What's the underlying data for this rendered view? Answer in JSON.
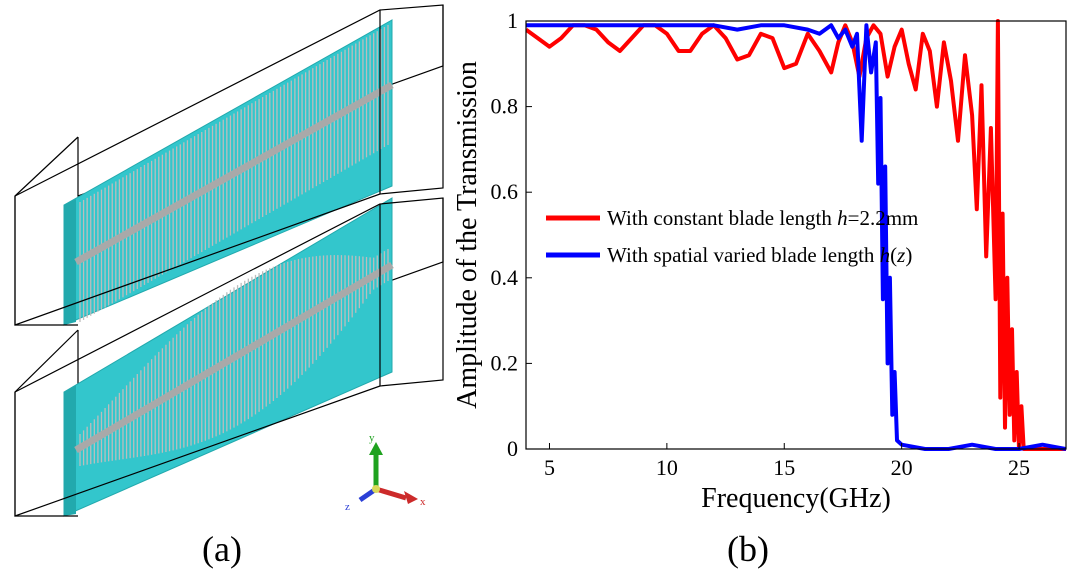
{
  "panel_a": {
    "label": "(a)",
    "axes": {
      "y_label": "y",
      "z_label": "z",
      "x_label": "x"
    },
    "colors": {
      "plate": "#33c6cc",
      "plate_dark": "#22a9ad",
      "fins": "#b8b8b8",
      "rod": "#a9a9a9",
      "box": "#000000"
    }
  },
  "panel_b": {
    "label": "(b)"
  },
  "chart_data": {
    "type": "line",
    "title": "",
    "xlabel": "Frequency(GHz)",
    "ylabel": "Amplitude of the Transmission",
    "xlim": [
      4,
      27
    ],
    "ylim": [
      0,
      1
    ],
    "xticks": [
      5,
      10,
      15,
      20,
      25
    ],
    "yticks": [
      0,
      0.2,
      0.4,
      0.6,
      0.8,
      1
    ],
    "ytick_labels": [
      "0",
      "0.2",
      "0.4",
      "0.6",
      "0.8",
      "1"
    ],
    "grid": false,
    "legend_position": "center-left",
    "series": [
      {
        "name": "With constant blade length h=2.2mm",
        "legend_parts": [
          "With constant blade length ",
          "h",
          "=2.2mm"
        ],
        "color": "#ff0000",
        "x": [
          4,
          4.5,
          5,
          5.5,
          6,
          6.5,
          7,
          7.5,
          8,
          8.5,
          9,
          9.5,
          10,
          10.5,
          11,
          11.5,
          12,
          12.5,
          13,
          13.5,
          14,
          14.5,
          15,
          15.5,
          16,
          16.5,
          17,
          17.3,
          17.6,
          17.9,
          18.2,
          18.5,
          18.8,
          19.1,
          19.4,
          19.7,
          20,
          20.3,
          20.6,
          20.9,
          21.2,
          21.5,
          21.8,
          22.1,
          22.4,
          22.7,
          23,
          23.2,
          23.4,
          23.6,
          23.8,
          24,
          24.1,
          24.2,
          24.3,
          24.4,
          24.5,
          24.6,
          24.7,
          24.8,
          24.9,
          25,
          25.1,
          25.2,
          25.4,
          25.6,
          26,
          26.5,
          27
        ],
        "y": [
          0.98,
          0.96,
          0.94,
          0.96,
          0.99,
          0.99,
          0.98,
          0.95,
          0.93,
          0.96,
          0.99,
          0.99,
          0.97,
          0.93,
          0.93,
          0.97,
          0.99,
          0.96,
          0.91,
          0.92,
          0.97,
          0.96,
          0.89,
          0.9,
          0.97,
          0.93,
          0.88,
          0.95,
          0.99,
          0.95,
          0.87,
          0.96,
          0.99,
          0.97,
          0.87,
          0.94,
          0.98,
          0.9,
          0.84,
          0.97,
          0.93,
          0.8,
          0.95,
          0.86,
          0.72,
          0.92,
          0.78,
          0.56,
          0.85,
          0.45,
          0.75,
          0.35,
          1.0,
          0.12,
          0.55,
          0.05,
          0.4,
          0.08,
          0.28,
          0.02,
          0.18,
          0.0,
          0.1,
          0.0,
          0.0,
          0.0,
          0.0,
          0.0,
          0.0
        ]
      },
      {
        "name": "With spatial varied blade length h(z)",
        "legend_parts": [
          "With spatial varied blade length ",
          "h",
          "(",
          "z",
          ")"
        ],
        "color": "#0000ff",
        "x": [
          4,
          5,
          6,
          7,
          8,
          9,
          10,
          11,
          12,
          13,
          14,
          15,
          16,
          16.5,
          17,
          17.3,
          17.6,
          17.9,
          18.1,
          18.3,
          18.5,
          18.7,
          18.9,
          19.0,
          19.1,
          19.2,
          19.3,
          19.4,
          19.5,
          19.6,
          19.7,
          19.8,
          20,
          21,
          22,
          23,
          24,
          25,
          26,
          27
        ],
        "y": [
          0.99,
          0.99,
          0.99,
          0.99,
          0.99,
          0.99,
          0.99,
          0.99,
          0.99,
          0.98,
          0.99,
          0.99,
          0.98,
          0.97,
          0.99,
          0.96,
          0.98,
          0.94,
          0.97,
          0.72,
          0.99,
          0.88,
          0.95,
          0.62,
          0.82,
          0.35,
          0.66,
          0.2,
          0.4,
          0.08,
          0.18,
          0.02,
          0.01,
          0.0,
          0.0,
          0.01,
          0.0,
          0.0,
          0.01,
          0.0
        ]
      }
    ]
  }
}
